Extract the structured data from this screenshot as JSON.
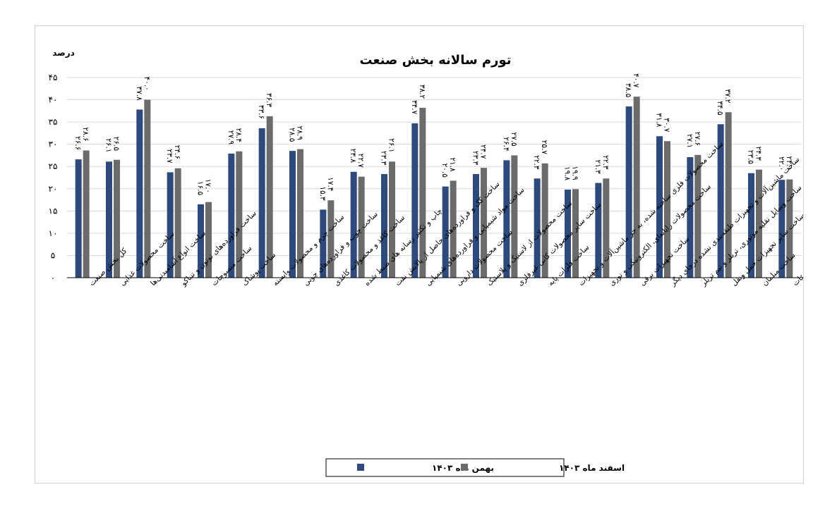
{
  "chart_data": {
    "type": "bar",
    "title": "تورم سالانه بخش صنعت",
    "ylabel": "درصد",
    "ylim": [
      0,
      45
    ],
    "yticks": [
      "۰",
      "۵",
      "۱۰",
      "۱۵",
      "۲۰",
      "۲۵",
      "۳۰",
      "۳۵",
      "۴۰",
      "۴۵"
    ],
    "grid": true,
    "legend_position": "bottom",
    "categories": [
      "کل بخش صنعت",
      "ساخت محصولات غذایی",
      "ساخت انواع آشامیدنی‌ها",
      "ساخت فراورده‌های توتون و تنباکو",
      "ساخت منسوجات",
      "ساخت پوشاک",
      "ساخت چرم و محصولات وابسته",
      "ساخت چوب و فراورده‌های چوبی",
      "ساخت کاغذ و محصولات کاغذی",
      "چاپ و تکثیر رسانه های ضبط شده",
      "ساخت کک و فراورده‌های حاصل از پالایش نفت",
      "ساخت مواد شیمیایی و فراورده‌های شیمیایی",
      "ساخت محصولات دارویی",
      "ساخت محصولات از لاستیک و پلاستیک",
      "ساخت سایر محصولات کانی غیرفلزی",
      "ساخت فلزات پایه",
      "ساخت محصولات فلزی ساخته شده، به جز ماشین‌آلات و تجهیزات",
      "ساخت محصولات رایانه‌ای، الکترونیکی و نوری",
      "ساخت تجهیزات برقی",
      "ساخت ماشین‌آلات و تجهیزات طبقه‌بندی نشده درجای دیگر",
      "ساخت وسایل نقلیه موتوری، تریلر و نیم تریلر",
      "ساخت سایر تجهیزات حمل ونقل",
      "ساخت مبلمان",
      "ساخت سایر مصنوعات"
    ],
    "series": [
      {
        "name": "بهمن ماه ۱۴۰۳",
        "color": "#2e4a7d",
        "values": [
          26.6,
          26.1,
          37.8,
          23.7,
          16.5,
          27.9,
          33.6,
          28.5,
          15.3,
          23.8,
          23.3,
          34.7,
          20.5,
          23.3,
          26.4,
          22.3,
          19.8,
          21.3,
          38.5,
          31.8,
          27.1,
          34.5,
          23.5,
          22.0
        ],
        "labels": [
          "۲۶.۶",
          "۲۶.۱",
          "۳۷.۸",
          "۲۳.۷",
          "۱۶.۵",
          "۲۷.۹",
          "۳۳.۶",
          "۲۸.۵",
          "۱۵.۳",
          "۲۳.۸",
          "۲۳.۳",
          "۳۴.۷",
          "۲۰.۵",
          "۲۳.۳",
          "۲۶.۴",
          "۲۲.۳",
          "۱۹.۸",
          "۲۱.۳",
          "۳۸.۵",
          "۳۱.۸",
          "۲۷.۱",
          "۳۴.۵",
          "۲۳.۵",
          "۲۲.۰"
        ]
      },
      {
        "name": "اسفند ماه ۱۴۰۳",
        "color": "#6b6b6b",
        "values": [
          28.6,
          26.5,
          40.0,
          24.6,
          17.0,
          28.4,
          36.3,
          28.9,
          17.4,
          22.7,
          26.1,
          38.2,
          21.8,
          24.7,
          27.5,
          25.7,
          19.9,
          22.3,
          40.7,
          30.7,
          27.6,
          37.2,
          24.3,
          22.1
        ],
        "labels": [
          "۲۸.۶",
          "۲۶.۵",
          "۴۰.۰",
          "۲۴.۶",
          "۱۷.۰",
          "۲۸.۴",
          "۳۶.۳",
          "۲۸.۹",
          "۱۷.۴",
          "۲۲.۷",
          "۲۶.۱",
          "۳۸.۲",
          "۲۱.۸",
          "۲۴.۷",
          "۲۷.۵",
          "۲۵.۷",
          "۱۹.۹",
          "۲۲.۳",
          "۴۰.۷",
          "۳۰.۷",
          "۲۷.۶",
          "۳۷.۲",
          "۲۴.۳",
          "۲۲.۱"
        ]
      }
    ]
  }
}
